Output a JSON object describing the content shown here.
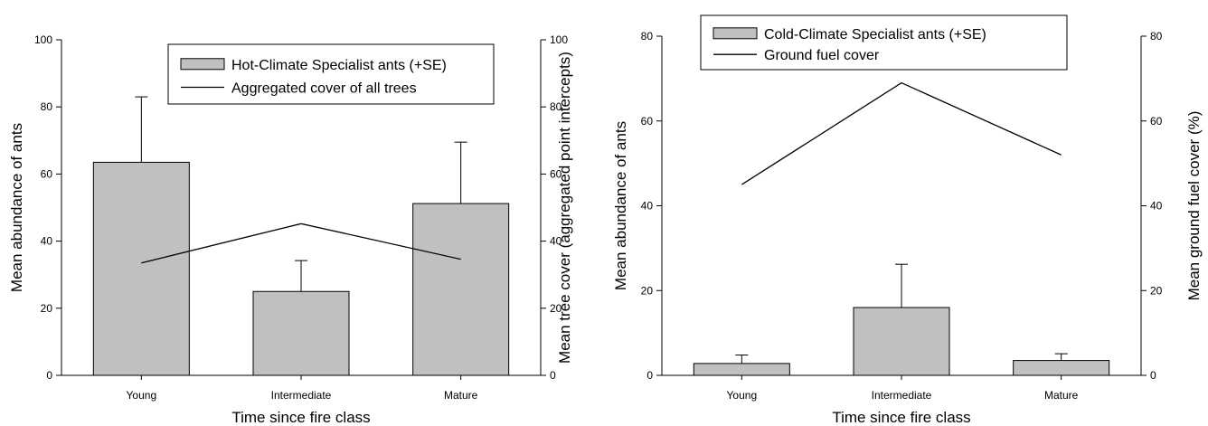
{
  "chart_data": [
    {
      "type": "bar",
      "categories": [
        "Young",
        "Intermediate",
        "Mature"
      ],
      "series": [
        {
          "name": "Hot-Climate Specialist ants (+SE)",
          "type": "bar",
          "axis": "left",
          "values": [
            63.5,
            25,
            51.2
          ],
          "errors": [
            19.5,
            9.2,
            18.3
          ]
        },
        {
          "name": "Aggregated cover of all trees",
          "type": "line",
          "axis": "right",
          "values": [
            33.5,
            45.2,
            34.6
          ]
        }
      ],
      "xlabel": "Time since fire class",
      "ylabel": "Mean abundance of ants",
      "ylabel_right": "Mean tree cover (aggregated point intercepts)",
      "ylim": [
        0,
        100
      ],
      "ylim_right": [
        0,
        100
      ],
      "yticks": [
        "0",
        "20",
        "40",
        "60",
        "80",
        "100"
      ],
      "yticks_right": [
        "0",
        "20",
        "40",
        "60",
        "80",
        "100"
      ],
      "grid": false,
      "legend_position": "top-right",
      "bar_color": "#c0c0c0"
    },
    {
      "type": "bar",
      "categories": [
        "Young",
        "Intermediate",
        "Mature"
      ],
      "series": [
        {
          "name": "Cold-Climate Specialist ants (+SE)",
          "type": "bar",
          "axis": "left",
          "values": [
            2.8,
            16,
            3.5
          ],
          "errors": [
            2,
            10.2,
            1.6
          ]
        },
        {
          "name": "Ground fuel cover",
          "type": "line",
          "axis": "right",
          "values": [
            45,
            69,
            52
          ]
        }
      ],
      "xlabel": "Time since fire class",
      "ylabel": "Mean abundance of ants",
      "ylabel_right": "Mean ground fuel cover (%)",
      "ylim": [
        0,
        80
      ],
      "ylim_right": [
        0,
        80
      ],
      "yticks": [
        "0",
        "20",
        "40",
        "60",
        "80"
      ],
      "yticks_right": [
        "0",
        "20",
        "40",
        "60",
        "80"
      ],
      "grid": false,
      "legend_position": "top-right",
      "bar_color": "#c0c0c0"
    }
  ]
}
